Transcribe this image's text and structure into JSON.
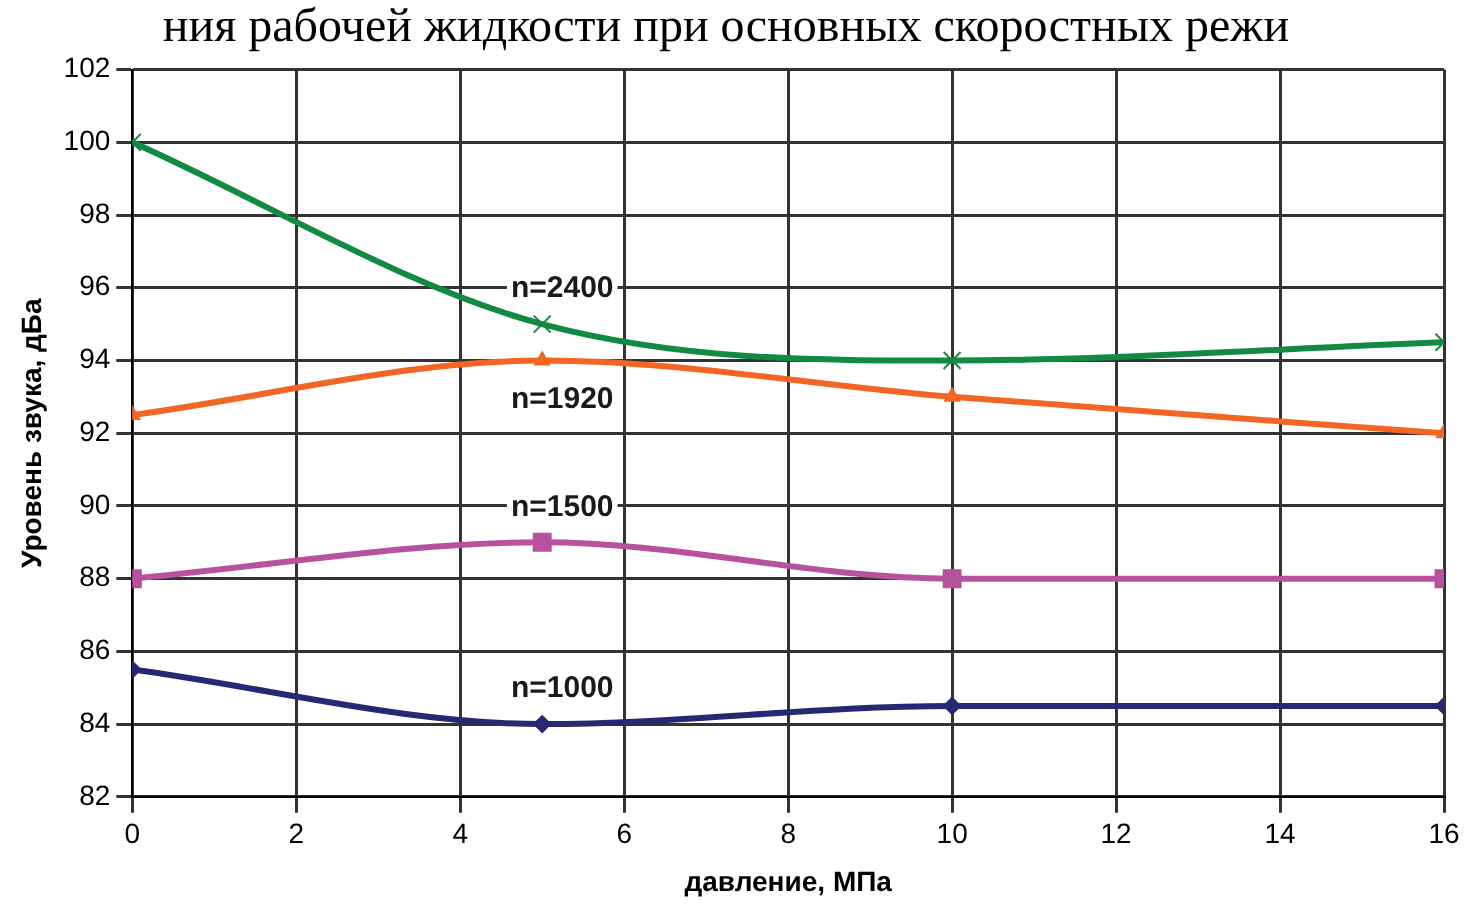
{
  "chart_data": {
    "type": "line",
    "title": "ния рабочей жидкости при основных скоростных режи",
    "xlabel": "давление, МПа",
    "ylabel": "Уровень звука, дБа",
    "x": [
      0,
      5,
      10,
      16
    ],
    "series": [
      {
        "name": "n=2400",
        "color": "#138a43",
        "marker": "cross",
        "values": [
          100,
          95,
          94,
          94.5
        ]
      },
      {
        "name": "n=1920",
        "color": "#f26522",
        "marker": "triangle",
        "values": [
          92.5,
          94,
          93,
          92
        ]
      },
      {
        "name": "n=1500",
        "color": "#b8529e",
        "marker": "square",
        "values": [
          88,
          89,
          88,
          88
        ]
      },
      {
        "name": "n=1000",
        "color": "#272874",
        "marker": "diamond",
        "values": [
          85.5,
          84,
          84.5,
          84.5
        ]
      }
    ],
    "xlim": [
      0,
      16
    ],
    "xticks": [
      0,
      2,
      4,
      6,
      8,
      10,
      12,
      14,
      16
    ],
    "ylim": [
      82,
      102
    ],
    "yticks": [
      82,
      84,
      86,
      88,
      90,
      92,
      94,
      96,
      98,
      100,
      102
    ],
    "grid": true,
    "legend": false
  }
}
